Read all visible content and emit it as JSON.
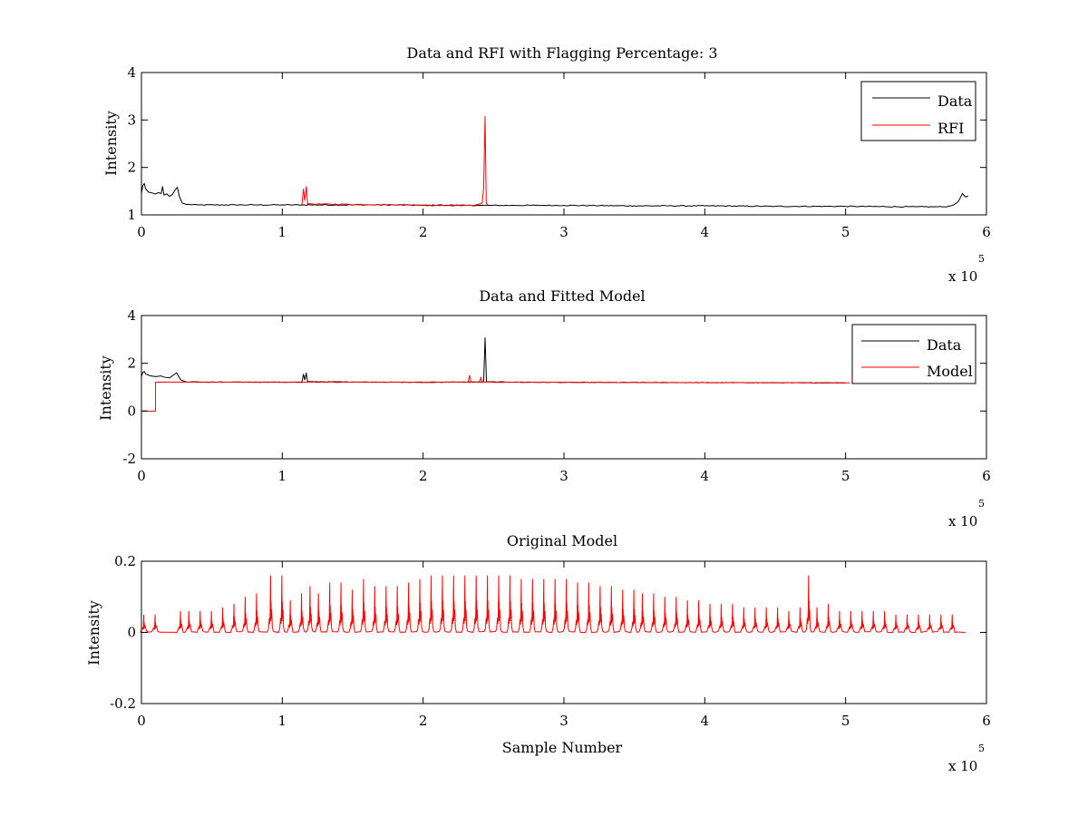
{
  "chart_data": [
    {
      "type": "line",
      "title": "Data and RFI with Flagging Percentage: 3",
      "xlabel": "",
      "ylabel": "Intensity",
      "x_multiplier_label": "x 10",
      "x_multiplier_exponent": "5",
      "xlim": [
        0,
        600000
      ],
      "ylim": [
        1,
        4
      ],
      "xticks": [
        0,
        1,
        2,
        3,
        4,
        5,
        6
      ],
      "yticks": [
        1,
        2,
        3,
        4
      ],
      "legend": {
        "position": "top-right",
        "entries": [
          "Data",
          "RFI"
        ]
      },
      "series": [
        {
          "name": "Data",
          "color": "#000000",
          "points": [
            [
              0,
              1.45
            ],
            [
              1000,
              1.62
            ],
            [
              2000,
              1.66
            ],
            [
              3000,
              1.55
            ],
            [
              5000,
              1.48
            ],
            [
              8000,
              1.46
            ],
            [
              10000,
              1.44
            ],
            [
              12000,
              1.47
            ],
            [
              14000,
              1.45
            ],
            [
              15000,
              1.6
            ],
            [
              16000,
              1.42
            ],
            [
              18000,
              1.44
            ],
            [
              20000,
              1.39
            ],
            [
              22000,
              1.43
            ],
            [
              24000,
              1.53
            ],
            [
              25500,
              1.58
            ],
            [
              27000,
              1.38
            ],
            [
              29000,
              1.25
            ],
            [
              32000,
              1.22
            ],
            [
              40000,
              1.21
            ],
            [
              60000,
              1.21
            ],
            [
              80000,
              1.21
            ],
            [
              100000,
              1.21
            ],
            [
              114000,
              1.21
            ],
            [
              120000,
              1.21
            ],
            [
              150000,
              1.21
            ],
            [
              180000,
              1.21
            ],
            [
              200000,
              1.2
            ],
            [
              230000,
              1.2
            ],
            [
              242000,
              1.2
            ],
            [
              248000,
              1.2
            ],
            [
              280000,
              1.2
            ],
            [
              300000,
              1.2
            ],
            [
              350000,
              1.19
            ],
            [
              400000,
              1.19
            ],
            [
              450000,
              1.18
            ],
            [
              500000,
              1.18
            ],
            [
              550000,
              1.17
            ],
            [
              570000,
              1.17
            ],
            [
              575000,
              1.19
            ],
            [
              580000,
              1.28
            ],
            [
              583000,
              1.45
            ],
            [
              585000,
              1.38
            ],
            [
              587000,
              1.4
            ]
          ]
        },
        {
          "name": "RFI",
          "color": "#ff0000",
          "points": [
            [
              114000,
              1.22
            ],
            [
              115000,
              1.55
            ],
            [
              116000,
              1.3
            ],
            [
              117000,
              1.6
            ],
            [
              118000,
              1.23
            ],
            [
              236000,
              1.2
            ],
            [
              239000,
              1.22
            ],
            [
              242000,
              1.25
            ],
            [
              243000,
              1.58
            ],
            [
              244000,
              3.08
            ],
            [
              244800,
              1.25
            ],
            [
              246000,
              1.21
            ]
          ]
        }
      ]
    },
    {
      "type": "line",
      "title": "Data and Fitted Model",
      "xlabel": "",
      "ylabel": "Intensity",
      "x_multiplier_label": "x 10",
      "x_multiplier_exponent": "5",
      "xlim": [
        0,
        600000
      ],
      "ylim": [
        -2,
        4
      ],
      "xticks": [
        0,
        1,
        2,
        3,
        4,
        5,
        6
      ],
      "yticks": [
        -2,
        0,
        2,
        4
      ],
      "legend": {
        "position": "top-right",
        "entries": [
          "Data",
          "Model"
        ]
      },
      "series": [
        {
          "name": "Data",
          "color": "#000000",
          "points": [
            [
              0,
              1.45
            ],
            [
              1000,
              1.62
            ],
            [
              2000,
              1.66
            ],
            [
              3000,
              1.55
            ],
            [
              6000,
              1.48
            ],
            [
              10000,
              1.44
            ],
            [
              14000,
              1.47
            ],
            [
              16000,
              1.42
            ],
            [
              20000,
              1.39
            ],
            [
              25000,
              1.6
            ],
            [
              28000,
              1.3
            ],
            [
              32000,
              1.22
            ],
            [
              60000,
              1.21
            ],
            [
              114000,
              1.21
            ],
            [
              115000,
              1.55
            ],
            [
              116000,
              1.3
            ],
            [
              117000,
              1.6
            ],
            [
              118000,
              1.23
            ],
            [
              200000,
              1.2
            ],
            [
              243000,
              1.22
            ],
            [
              244000,
              3.08
            ],
            [
              245000,
              1.22
            ],
            [
              300000,
              1.2
            ],
            [
              400000,
              1.19
            ],
            [
              500000,
              1.18
            ]
          ]
        },
        {
          "name": "Model",
          "color": "#ff0000",
          "points": [
            [
              0,
              0
            ],
            [
              10000,
              0
            ],
            [
              10000,
              1.21
            ],
            [
              60000,
              1.21
            ],
            [
              232000,
              1.21
            ],
            [
              233000,
              1.5
            ],
            [
              234000,
              1.21
            ],
            [
              240000,
              1.21
            ],
            [
              241000,
              1.4
            ],
            [
              242000,
              1.21
            ],
            [
              300000,
              1.2
            ],
            [
              400000,
              1.19
            ],
            [
              500000,
              1.18
            ],
            [
              503000,
              1.18
            ]
          ]
        }
      ]
    },
    {
      "type": "line",
      "title": "Original Model",
      "xlabel": "Sample Number",
      "ylabel": "Intensity",
      "x_multiplier_label": "x 10",
      "x_multiplier_exponent": "5",
      "xlim": [
        0,
        600000
      ],
      "ylim": [
        -0.2,
        0.2
      ],
      "xticks": [
        0,
        1,
        2,
        3,
        4,
        5,
        6
      ],
      "yticks": [
        -0.2,
        0,
        0.2
      ],
      "series": [
        {
          "name": "",
          "color": "#ff0000",
          "pulse_centers": [
            2000,
            10000,
            28000,
            34000,
            42000,
            50000,
            58000,
            66000,
            74000,
            82000,
            92000,
            100000,
            106000,
            114000,
            120000,
            126000,
            134000,
            142000,
            150000,
            158000,
            166000,
            174000,
            182000,
            190000,
            198000,
            206000,
            214000,
            222000,
            230000,
            238000,
            246000,
            254000,
            262000,
            270000,
            278000,
            286000,
            294000,
            302000,
            310000,
            318000,
            326000,
            334000,
            342000,
            350000,
            356000,
            364000,
            372000,
            380000,
            388000,
            396000,
            404000,
            412000,
            420000,
            428000,
            436000,
            444000,
            452000,
            460000,
            468000,
            474000,
            480000,
            488000,
            496000,
            504000,
            512000,
            520000,
            528000,
            536000,
            544000,
            552000,
            560000,
            568000,
            576000
          ],
          "pulse_peaks": [
            0.05,
            0.05,
            0.06,
            0.06,
            0.06,
            0.06,
            0.07,
            0.08,
            0.1,
            0.11,
            0.16,
            0.16,
            0.09,
            0.11,
            0.13,
            0.11,
            0.14,
            0.14,
            0.12,
            0.15,
            0.13,
            0.13,
            0.13,
            0.14,
            0.15,
            0.16,
            0.16,
            0.16,
            0.16,
            0.16,
            0.16,
            0.16,
            0.16,
            0.15,
            0.15,
            0.15,
            0.15,
            0.15,
            0.14,
            0.14,
            0.13,
            0.13,
            0.12,
            0.12,
            0.11,
            0.11,
            0.1,
            0.1,
            0.09,
            0.09,
            0.08,
            0.08,
            0.08,
            0.07,
            0.07,
            0.07,
            0.07,
            0.06,
            0.07,
            0.16,
            0.07,
            0.08,
            0.06,
            0.06,
            0.06,
            0.06,
            0.06,
            0.05,
            0.05,
            0.05,
            0.05,
            0.05,
            0.05
          ],
          "baseline": 0.0,
          "end_x": 585000
        }
      ]
    }
  ]
}
